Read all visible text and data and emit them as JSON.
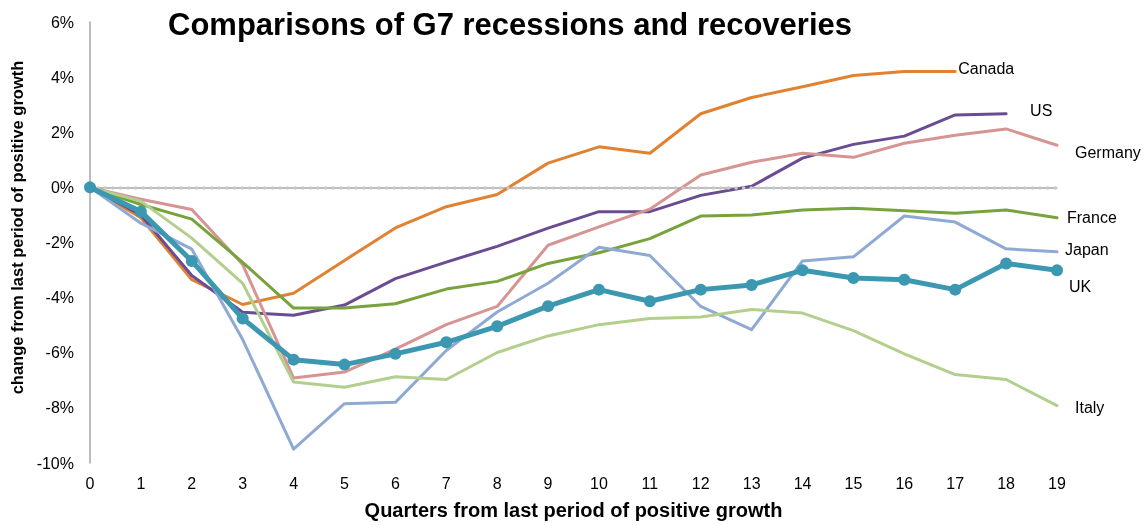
{
  "chart_data": {
    "type": "line",
    "title": "Comparisons of G7 recessions and recoveries",
    "xlabel": "Quarters from last period of positive growth",
    "ylabel": "change from last period of positive growth",
    "x": [
      0,
      1,
      2,
      3,
      4,
      5,
      6,
      7,
      8,
      9,
      10,
      11,
      12,
      13,
      14,
      15,
      16,
      17,
      18,
      19
    ],
    "xlim": [
      0,
      19
    ],
    "xticks": [
      0,
      1,
      2,
      3,
      4,
      5,
      6,
      7,
      8,
      9,
      10,
      11,
      12,
      13,
      14,
      15,
      16,
      17,
      18,
      19
    ],
    "ylim": [
      -10,
      6
    ],
    "yticks": [
      {
        "value": -10,
        "label": "-10%"
      },
      {
        "value": -8,
        "label": "-8%"
      },
      {
        "value": -6,
        "label": "-6%"
      },
      {
        "value": -4,
        "label": "-4%"
      },
      {
        "value": -2,
        "label": "-2%"
      },
      {
        "value": 0,
        "label": "0%"
      },
      {
        "value": 2,
        "label": "2%"
      },
      {
        "value": 4,
        "label": "4%"
      },
      {
        "value": 6,
        "label": "6%"
      }
    ],
    "grid": false,
    "legend": false,
    "marker": "none",
    "line_style": "solid",
    "ref_lines": [
      {
        "axis": "y",
        "value": 0,
        "color": "#c8c8c8",
        "line_style": "dotted"
      }
    ],
    "series": [
      {
        "name": "Canada",
        "color": "#e08232",
        "values": [
          0,
          -1.1,
          -3.35,
          -4.25,
          -3.84,
          -2.65,
          -1.47,
          -0.7,
          -0.26,
          0.88,
          1.47,
          1.24,
          2.67,
          3.26,
          3.65,
          4.06,
          4.2,
          4.2,
          null,
          null
        ]
      },
      {
        "name": "US",
        "color": "#6a4c93",
        "values": [
          0,
          -1.0,
          -3.2,
          -4.53,
          -4.64,
          -4.27,
          -3.31,
          -2.71,
          -2.14,
          -1.48,
          -0.88,
          -0.88,
          -0.29,
          0.04,
          1.06,
          1.56,
          1.86,
          2.63,
          2.67,
          null
        ]
      },
      {
        "name": "Germany",
        "color": "#d69492",
        "values": [
          0,
          -0.43,
          -0.8,
          -2.8,
          -6.92,
          -6.7,
          -5.87,
          -4.98,
          -4.32,
          -2.1,
          -1.43,
          -0.79,
          0.45,
          0.91,
          1.24,
          1.09,
          1.6,
          1.89,
          2.12,
          1.53
        ]
      },
      {
        "name": "France",
        "color": "#78a33c",
        "values": [
          0,
          -0.62,
          -1.15,
          -2.72,
          -4.38,
          -4.38,
          -4.22,
          -3.69,
          -3.41,
          -2.76,
          -2.37,
          -1.86,
          -1.04,
          -1.0,
          -0.82,
          -0.76,
          -0.85,
          -0.94,
          -0.82,
          -1.1
        ]
      },
      {
        "name": "Japan",
        "color": "#8eaad3",
        "values": [
          0,
          -1.3,
          -2.24,
          -5.52,
          -9.5,
          -7.85,
          -7.8,
          -5.92,
          -4.52,
          -3.48,
          -2.17,
          -2.47,
          -4.32,
          -5.16,
          -2.67,
          -2.52,
          -1.04,
          -1.26,
          -2.23,
          -2.34
        ]
      },
      {
        "name": "Italy",
        "color": "#b3cf8d",
        "values": [
          0,
          -0.5,
          -1.84,
          -3.48,
          -7.06,
          -7.25,
          -6.87,
          -6.97,
          -5.99,
          -5.39,
          -4.98,
          -4.76,
          -4.7,
          -4.43,
          -4.56,
          -5.2,
          -6.04,
          -6.79,
          -6.97,
          -7.92
        ]
      },
      {
        "name": "UK",
        "color": "#3c98b1",
        "marker": "circle",
        "values": [
          0,
          -0.88,
          -2.67,
          -4.76,
          -6.25,
          -6.43,
          -6.04,
          -5.62,
          -5.04,
          -4.31,
          -3.71,
          -4.13,
          -3.71,
          -3.54,
          -3.01,
          -3.29,
          -3.35,
          -3.71,
          -2.76,
          -3.01
        ]
      }
    ]
  }
}
